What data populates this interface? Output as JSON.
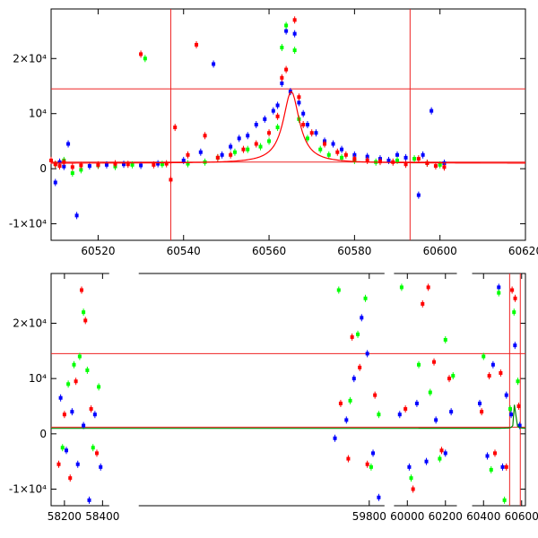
{
  "chart_data": [
    {
      "type": "scatter",
      "title": "",
      "xlabel": "",
      "ylabel": "",
      "xlim": [
        60509,
        60620
      ],
      "ylim": [
        -13000,
        29000
      ],
      "x_ticks": [
        60520,
        60540,
        60560,
        60580,
        60600,
        60620
      ],
      "y_ticks": [
        {
          "value": 20000,
          "label": "2×10⁴"
        },
        {
          "value": 10000,
          "label": "10⁴"
        },
        {
          "value": 0,
          "label": "0"
        },
        {
          "value": -10000,
          "label": "-1×10⁴"
        }
      ],
      "vlines": [
        60537,
        60593
      ],
      "hlines": [
        14500,
        1200
      ],
      "model": {
        "baseline": 1000,
        "peak": 14000,
        "t0": 60565.2,
        "tE": 2.3,
        "color": "#ff0000"
      },
      "series": [
        {
          "color": "#0000ff",
          "points": [
            [
              60510,
              -2500
            ],
            [
              60511,
              1200
            ],
            [
              60512,
              400
            ],
            [
              60513,
              4500
            ],
            [
              60515,
              -8500
            ],
            [
              60518,
              500
            ],
            [
              60522,
              700
            ],
            [
              60526,
              800
            ],
            [
              60530,
              600
            ],
            [
              60534,
              900
            ],
            [
              60540,
              1500
            ],
            [
              60544,
              3000
            ],
            [
              60547,
              19000
            ],
            [
              60549,
              2500
            ],
            [
              60551,
              4000
            ],
            [
              60553,
              5500
            ],
            [
              60555,
              6000
            ],
            [
              60557,
              8000
            ],
            [
              60559,
              9000
            ],
            [
              60561,
              10500
            ],
            [
              60562,
              11500
            ],
            [
              60563,
              15500
            ],
            [
              60564,
              25000
            ],
            [
              60565,
              14000
            ],
            [
              60566,
              24500
            ],
            [
              60567,
              12000
            ],
            [
              60568,
              10000
            ],
            [
              60569,
              8000
            ],
            [
              60571,
              6500
            ],
            [
              60573,
              5000
            ],
            [
              60575,
              4500
            ],
            [
              60577,
              3500
            ],
            [
              60580,
              2500
            ],
            [
              60583,
              2200
            ],
            [
              60586,
              1800
            ],
            [
              60588,
              1500
            ],
            [
              60590,
              2500
            ],
            [
              60592,
              2000
            ],
            [
              60595,
              -4800
            ],
            [
              60596,
              2500
            ],
            [
              60598,
              10500
            ],
            [
              60601,
              1000
            ]
          ]
        },
        {
          "color": "#00ff00",
          "points": [
            [
              60510,
              800
            ],
            [
              60512,
              1500
            ],
            [
              60514,
              -800
            ],
            [
              60516,
              -200
            ],
            [
              60520,
              600
            ],
            [
              60524,
              400
            ],
            [
              60528,
              700
            ],
            [
              60531,
              20000
            ],
            [
              60535,
              800
            ],
            [
              60541,
              900
            ],
            [
              60545,
              1200
            ],
            [
              60548,
              2000
            ],
            [
              60552,
              3000
            ],
            [
              60555,
              3500
            ],
            [
              60558,
              4000
            ],
            [
              60560,
              5000
            ],
            [
              60562,
              7500
            ],
            [
              60563,
              22000
            ],
            [
              60564,
              26000
            ],
            [
              60566,
              21500
            ],
            [
              60567,
              9000
            ],
            [
              60569,
              5500
            ],
            [
              60572,
              3500
            ],
            [
              60574,
              2500
            ],
            [
              60577,
              2000
            ],
            [
              60580,
              1500
            ],
            [
              60585,
              1200
            ],
            [
              60590,
              1500
            ],
            [
              60594,
              1800
            ],
            [
              60597,
              1000
            ],
            [
              60600,
              700
            ]
          ]
        },
        {
          "color": "#ff0000",
          "points": [
            [
              60509,
              1500
            ],
            [
              60510,
              800
            ],
            [
              60511,
              500
            ],
            [
              60512,
              1200
            ],
            [
              60514,
              300
            ],
            [
              60516,
              600
            ],
            [
              60520,
              700
            ],
            [
              60524,
              900
            ],
            [
              60527,
              800
            ],
            [
              60530,
              20800
            ],
            [
              60533,
              700
            ],
            [
              60536,
              900
            ],
            [
              60537,
              -2000
            ],
            [
              60538,
              7500
            ],
            [
              60541,
              2500
            ],
            [
              60543,
              22500
            ],
            [
              60545,
              6000
            ],
            [
              60548,
              2000
            ],
            [
              60551,
              2500
            ],
            [
              60554,
              3500
            ],
            [
              60557,
              4500
            ],
            [
              60560,
              6500
            ],
            [
              60562,
              9500
            ],
            [
              60563,
              16500
            ],
            [
              60564,
              18000
            ],
            [
              60566,
              27000
            ],
            [
              60567,
              13000
            ],
            [
              60568,
              8000
            ],
            [
              60570,
              6500
            ],
            [
              60573,
              4500
            ],
            [
              60576,
              3000
            ],
            [
              60578,
              2500
            ],
            [
              60580,
              1800
            ],
            [
              60583,
              1500
            ],
            [
              60586,
              1300
            ],
            [
              60589,
              1200
            ],
            [
              60592,
              800
            ],
            [
              60595,
              1800
            ],
            [
              60597,
              1000
            ],
            [
              60599,
              500
            ],
            [
              60601,
              300
            ]
          ]
        }
      ]
    },
    {
      "type": "scatter",
      "title": "",
      "xlabel": "",
      "ylabel": "",
      "xlim": [
        58130,
        60620
      ],
      "ylim": [
        -13000,
        29000
      ],
      "x_ticks": [
        58200,
        58400,
        59800,
        60000,
        60200,
        60400,
        60600
      ],
      "segment_gaps": [
        [
          58435,
          58590
        ],
        [
          59880,
          59930
        ],
        [
          60260,
          60340
        ]
      ],
      "y_ticks": [
        {
          "value": 20000,
          "label": "2×10⁴"
        },
        {
          "value": 10000,
          "label": "10⁴"
        },
        {
          "value": 0,
          "label": "0"
        },
        {
          "value": -10000,
          "label": "-1×10⁴"
        }
      ],
      "vlines": [
        60537,
        60593
      ],
      "hlines": [
        14500,
        1200
      ],
      "model": {
        "baseline": 1000,
        "peak": 14000,
        "t0": 60565.2,
        "tE": 2.3,
        "color": "#008800"
      },
      "series": [
        {
          "color": "#0000ff",
          "points": [
            [
              58180,
              6500
            ],
            [
              58210,
              -3000
            ],
            [
              58240,
              4000
            ],
            [
              58270,
              -5500
            ],
            [
              58300,
              1500
            ],
            [
              58330,
              -12000
            ],
            [
              58360,
              3500
            ],
            [
              58390,
              -6000
            ],
            [
              59620,
              -800
            ],
            [
              59680,
              2500
            ],
            [
              59720,
              10000
            ],
            [
              59760,
              21000
            ],
            [
              59790,
              14500
            ],
            [
              59820,
              -3500
            ],
            [
              59850,
              -11500
            ],
            [
              59960,
              3500
            ],
            [
              60010,
              -6000
            ],
            [
              60050,
              5500
            ],
            [
              60100,
              -5000
            ],
            [
              60150,
              2500
            ],
            [
              60200,
              -3500
            ],
            [
              60230,
              4000
            ],
            [
              60380,
              5500
            ],
            [
              60420,
              -4000
            ],
            [
              60450,
              12500
            ],
            [
              60480,
              26500
            ],
            [
              60500,
              -6000
            ],
            [
              60520,
              7000
            ],
            [
              60545,
              3500
            ],
            [
              60565,
              16000
            ],
            [
              60590,
              1500
            ]
          ]
        },
        {
          "color": "#00ff00",
          "points": [
            [
              58190,
              -2500
            ],
            [
              58220,
              9000
            ],
            [
              58250,
              12500
            ],
            [
              58280,
              14000
            ],
            [
              58300,
              22000
            ],
            [
              58320,
              11500
            ],
            [
              58350,
              -2500
            ],
            [
              58380,
              8500
            ],
            [
              59640,
              26000
            ],
            [
              59700,
              6000
            ],
            [
              59740,
              18000
            ],
            [
              59780,
              24500
            ],
            [
              59810,
              -6000
            ],
            [
              59850,
              3500
            ],
            [
              59970,
              26500
            ],
            [
              60020,
              -8000
            ],
            [
              60060,
              12500
            ],
            [
              60120,
              7500
            ],
            [
              60170,
              -4500
            ],
            [
              60200,
              17000
            ],
            [
              60240,
              10500
            ],
            [
              60400,
              14000
            ],
            [
              60440,
              -6500
            ],
            [
              60480,
              25500
            ],
            [
              60510,
              -12000
            ],
            [
              60540,
              4500
            ],
            [
              60560,
              22000
            ],
            [
              60580,
              9500
            ]
          ]
        },
        {
          "color": "#ff0000",
          "points": [
            [
              58170,
              -5500
            ],
            [
              58200,
              3500
            ],
            [
              58230,
              -8000
            ],
            [
              58260,
              9500
            ],
            [
              58290,
              26000
            ],
            [
              58310,
              20500
            ],
            [
              58340,
              4500
            ],
            [
              58370,
              -3500
            ],
            [
              59650,
              5500
            ],
            [
              59690,
              -4500
            ],
            [
              59710,
              17500
            ],
            [
              59750,
              12000
            ],
            [
              59790,
              -5500
            ],
            [
              59830,
              7000
            ],
            [
              59990,
              4500
            ],
            [
              60030,
              -10000
            ],
            [
              60080,
              23500
            ],
            [
              60110,
              26500
            ],
            [
              60140,
              13000
            ],
            [
              60180,
              -3000
            ],
            [
              60220,
              10000
            ],
            [
              60390,
              4000
            ],
            [
              60430,
              10500
            ],
            [
              60460,
              -3500
            ],
            [
              60490,
              11000
            ],
            [
              60520,
              -6000
            ],
            [
              60550,
              26000
            ],
            [
              60566,
              24500
            ],
            [
              60585,
              5000
            ]
          ]
        }
      ]
    }
  ]
}
